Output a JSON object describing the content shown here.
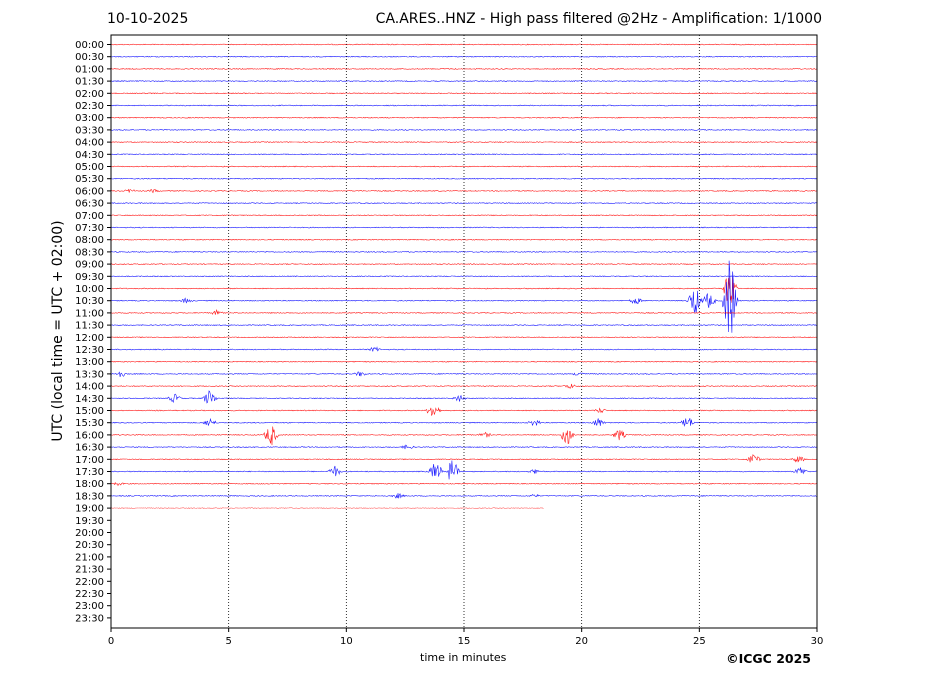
{
  "header": {
    "date": "10-10-2025",
    "title": "CA.ARES..HNZ - High pass filtered @2Hz - Amplification: 1/1000"
  },
  "credit": "©ICGC 2025",
  "chart_data": {
    "type": "line",
    "title": "CA.ARES..HNZ - High pass filtered @2Hz - Amplification: 1/1000",
    "xlabel": "time in minutes",
    "ylabel": "UTC (local time = UTC + 02:00)",
    "xlim": [
      0,
      30
    ],
    "x_ticks": [
      "0",
      "5",
      "10",
      "15",
      "20",
      "25",
      "30"
    ],
    "y_ticks": [
      "00:00",
      "00:30",
      "01:00",
      "01:30",
      "02:00",
      "02:30",
      "03:00",
      "03:30",
      "04:00",
      "04:30",
      "05:00",
      "05:30",
      "06:00",
      "06:30",
      "07:00",
      "07:30",
      "08:00",
      "08:30",
      "09:00",
      "09:30",
      "10:00",
      "10:30",
      "11:00",
      "11:30",
      "12:00",
      "12:30",
      "13:00",
      "13:30",
      "14:00",
      "14:30",
      "15:00",
      "15:30",
      "16:00",
      "16:30",
      "17:00",
      "17:30",
      "18:00",
      "18:30",
      "19:00",
      "19:30",
      "20:00",
      "20:30",
      "21:00",
      "21:30",
      "22:00",
      "22:30",
      "23:00",
      "23:30"
    ],
    "vertical_gridlines": [
      5,
      10,
      15,
      20,
      25
    ],
    "grid_style": "dotted",
    "last_trace": {
      "row": "19:00",
      "end_minute": 18.4
    },
    "colors": {
      "even_row": "#ff0000",
      "odd_row": "#0000ff"
    },
    "events": [
      {
        "row": "06:00",
        "minute": 0.8,
        "amp": 2
      },
      {
        "row": "06:00",
        "minute": 1.8,
        "amp": 2
      },
      {
        "row": "10:00",
        "minute": 26.3,
        "amp": 22
      },
      {
        "row": "10:30",
        "minute": 3.2,
        "amp": 3
      },
      {
        "row": "10:30",
        "minute": 22.3,
        "amp": 4
      },
      {
        "row": "10:30",
        "minute": 24.8,
        "amp": 16
      },
      {
        "row": "10:30",
        "minute": 25.4,
        "amp": 9
      },
      {
        "row": "10:30",
        "minute": 26.3,
        "amp": 48
      },
      {
        "row": "11:00",
        "minute": 4.5,
        "amp": 3
      },
      {
        "row": "12:30",
        "minute": 11.2,
        "amp": 3
      },
      {
        "row": "13:30",
        "minute": 0.4,
        "amp": 4
      },
      {
        "row": "13:30",
        "minute": 10.6,
        "amp": 3
      },
      {
        "row": "13:30",
        "minute": 19.9,
        "amp": 3
      },
      {
        "row": "14:00",
        "minute": 19.5,
        "amp": 3
      },
      {
        "row": "14:30",
        "minute": 2.7,
        "amp": 5
      },
      {
        "row": "14:30",
        "minute": 4.2,
        "amp": 9
      },
      {
        "row": "14:30",
        "minute": 14.8,
        "amp": 4
      },
      {
        "row": "15:00",
        "minute": 13.7,
        "amp": 9
      },
      {
        "row": "15:00",
        "minute": 20.8,
        "amp": 3
      },
      {
        "row": "15:30",
        "minute": 4.2,
        "amp": 5
      },
      {
        "row": "15:30",
        "minute": 18.0,
        "amp": 4
      },
      {
        "row": "15:30",
        "minute": 20.7,
        "amp": 5
      },
      {
        "row": "15:30",
        "minute": 24.5,
        "amp": 7
      },
      {
        "row": "16:00",
        "minute": 6.8,
        "amp": 12
      },
      {
        "row": "16:00",
        "minute": 15.9,
        "amp": 3
      },
      {
        "row": "16:00",
        "minute": 19.4,
        "amp": 12
      },
      {
        "row": "16:00",
        "minute": 21.6,
        "amp": 6
      },
      {
        "row": "16:30",
        "minute": 12.6,
        "amp": 3
      },
      {
        "row": "17:00",
        "minute": 27.3,
        "amp": 6
      },
      {
        "row": "17:00",
        "minute": 29.2,
        "amp": 4
      },
      {
        "row": "17:30",
        "minute": 9.5,
        "amp": 6
      },
      {
        "row": "17:30",
        "minute": 13.8,
        "amp": 11
      },
      {
        "row": "17:30",
        "minute": 14.5,
        "amp": 13
      },
      {
        "row": "17:30",
        "minute": 18.0,
        "amp": 3
      },
      {
        "row": "17:30",
        "minute": 29.3,
        "amp": 5
      },
      {
        "row": "18:00",
        "minute": 0.3,
        "amp": 2
      },
      {
        "row": "18:30",
        "minute": 12.2,
        "amp": 3
      },
      {
        "row": "18:30",
        "minute": 18.0,
        "amp": 2
      }
    ]
  }
}
